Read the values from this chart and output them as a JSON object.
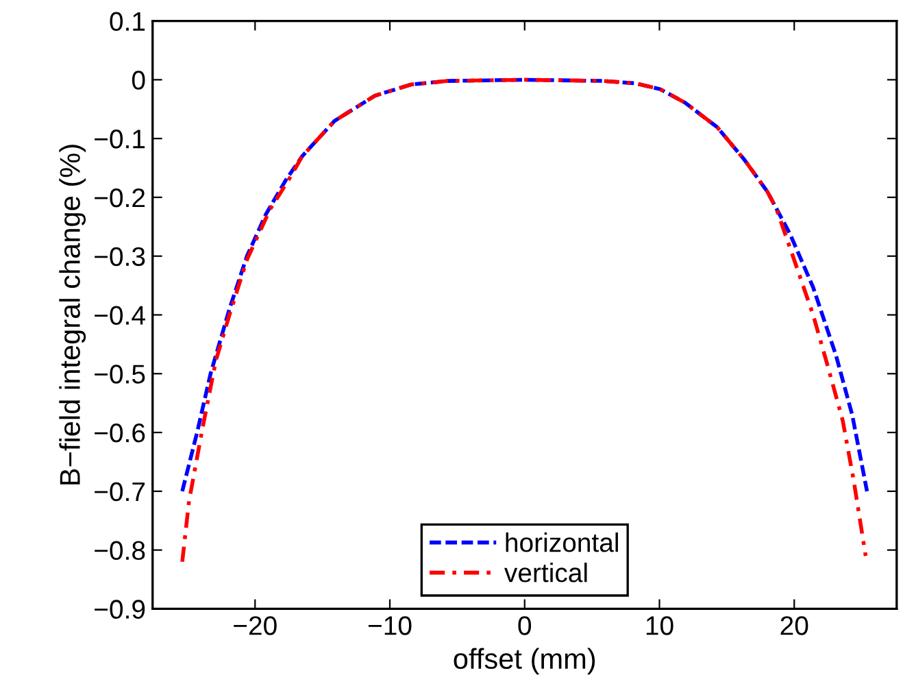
{
  "chart_data": {
    "type": "line",
    "xlabel": "offset (mm)",
    "ylabel": "B−field integral change (%)",
    "xlim": [
      -27.6,
      27.6
    ],
    "ylim": [
      -0.9,
      0.1
    ],
    "xticks": [
      {
        "value": -20,
        "label": "−20"
      },
      {
        "value": -10,
        "label": "−10"
      },
      0,
      10,
      20
    ],
    "yticks": [
      {
        "value": -0.9,
        "label": "−0.9"
      },
      {
        "value": -0.8,
        "label": "−0.8"
      },
      {
        "value": -0.7,
        "label": "−0.7"
      },
      {
        "value": -0.6,
        "label": "−0.6"
      },
      {
        "value": -0.5,
        "label": "−0.5"
      },
      {
        "value": -0.4,
        "label": "−0.4"
      },
      {
        "value": -0.3,
        "label": "−0.3"
      },
      {
        "value": -0.2,
        "label": "−0.2"
      },
      {
        "value": -0.1,
        "label": "−0.1"
      },
      0,
      0.1
    ],
    "grid": false,
    "legend": "bottom",
    "marker": "none",
    "series": [
      {
        "name": "horizontal",
        "color": "#0000ff",
        "line_style": "dashed",
        "x": [
          -25.4,
          -24.3,
          -23.3,
          -21.9,
          -20.6,
          -19.2,
          -17.7,
          -16.5,
          -14.1,
          -11.1,
          -8.4,
          -5.7,
          0,
          5.8,
          8.2,
          10.05,
          11.9,
          14.3,
          16.3,
          18.0,
          19.7,
          21.4,
          23.1,
          24.3,
          25.4
        ],
        "values": [
          -0.7,
          -0.6,
          -0.5,
          -0.39,
          -0.3,
          -0.229,
          -0.17,
          -0.13,
          -0.07,
          -0.027,
          -0.008,
          -0.002,
          0,
          -0.002,
          -0.006,
          -0.016,
          -0.039,
          -0.081,
          -0.136,
          -0.19,
          -0.263,
          -0.353,
          -0.469,
          -0.57,
          -0.7
        ]
      },
      {
        "name": "vertical",
        "color": "#ff0000",
        "line_style": "dashdot",
        "x": [
          -25.4,
          -24.9,
          -23.9,
          -22.9,
          -21.9,
          -20.6,
          -18.9,
          -17.5,
          -16.5,
          -14.1,
          -11.1,
          -8.4,
          -5.7,
          0,
          5.8,
          8.2,
          10.05,
          11.9,
          14.3,
          16.3,
          18.0,
          18.7,
          19.9,
          21.4,
          22.4,
          23.6,
          24.4,
          25.3
        ],
        "values": [
          -0.82,
          -0.717,
          -0.593,
          -0.477,
          -0.4,
          -0.306,
          -0.221,
          -0.17,
          -0.13,
          -0.07,
          -0.027,
          -0.008,
          -0.002,
          0,
          -0.002,
          -0.006,
          -0.016,
          -0.039,
          -0.081,
          -0.136,
          -0.19,
          -0.221,
          -0.3,
          -0.4,
          -0.48,
          -0.58,
          -0.68,
          -0.81
        ]
      }
    ]
  }
}
